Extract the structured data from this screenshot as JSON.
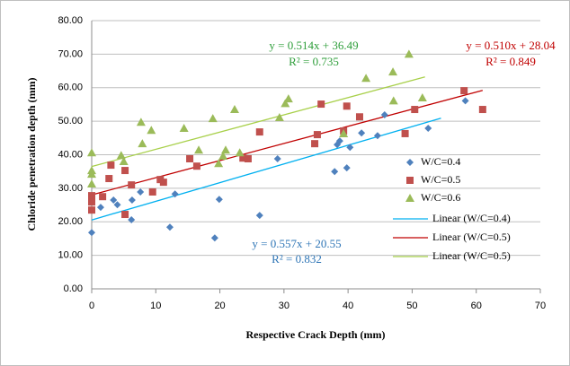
{
  "chart_data": {
    "type": "scatter",
    "xlabel": "Respective Crack  Depth (mm)",
    "ylabel": "Chloride penetration depth (mm)",
    "xlim": [
      0,
      70
    ],
    "xticks": [
      0,
      10,
      20,
      30,
      40,
      50,
      60,
      70
    ],
    "ylim": [
      0,
      80
    ],
    "yticks": [
      {
        "value": 0,
        "label": "0.00"
      },
      {
        "value": 10,
        "label": "10.00"
      },
      {
        "value": 20,
        "label": "20.00"
      },
      {
        "value": 30,
        "label": "30.00"
      },
      {
        "value": 40,
        "label": "40.00"
      },
      {
        "value": 50,
        "label": "50.00"
      },
      {
        "value": 60,
        "label": "60.00"
      },
      {
        "value": 70,
        "label": "70.00"
      },
      {
        "value": 80,
        "label": "80.00"
      }
    ],
    "grid": true,
    "legend": "right",
    "series": [
      {
        "name": "W/C=0.4",
        "kind": "scatter",
        "marker": "diamond",
        "color": "#4f81bd",
        "x": [
          0,
          1.4,
          3.4,
          4,
          6.2,
          6.3,
          7.6,
          12.2,
          13,
          19.2,
          19.9,
          26.2,
          29,
          37.9,
          38.3,
          38.7,
          39.8,
          40.3,
          42.1,
          44.6,
          45.7,
          52.5,
          58.3
        ],
        "values": [
          16.8,
          24.3,
          26.5,
          25.1,
          20.6,
          26.5,
          28.9,
          18.4,
          28.3,
          15.2,
          26.7,
          21.9,
          38.8,
          35,
          43,
          44.1,
          36.1,
          42.2,
          46.5,
          45.7,
          51.9,
          47.9,
          56.1
        ]
      },
      {
        "name": "W/C=0.5",
        "kind": "scatter",
        "marker": "square",
        "color": "#c0504d",
        "x": [
          0,
          0,
          0,
          1.7,
          2.7,
          3,
          5.2,
          5.2,
          6.2,
          9.5,
          10.7,
          11.2,
          15.3,
          16.4,
          23.6,
          24.4,
          26.2,
          34.8,
          35.2,
          35.8,
          39.3,
          39.8,
          41.8,
          48.9,
          50.4,
          58.1,
          61
        ],
        "values": [
          27.8,
          25.9,
          23.5,
          27.5,
          32.9,
          36.9,
          35.3,
          22.2,
          31,
          28.9,
          32.6,
          31.8,
          38.8,
          36.6,
          39,
          38.8,
          46.8,
          43.3,
          46,
          55.1,
          47.1,
          54.5,
          51.3,
          46.3,
          53.5,
          59.1,
          53.5
        ]
      },
      {
        "name": "W/C=0.6",
        "kind": "scatter",
        "marker": "triangle",
        "color": "#9bbb59",
        "x": [
          0,
          0,
          0,
          0,
          4.6,
          5,
          7.7,
          7.9,
          9.3,
          14.4,
          16.7,
          18.9,
          19.8,
          20.5,
          20.9,
          22.3,
          23.1,
          29.3,
          30.2,
          30.7,
          39.3,
          42.8,
          47.1,
          47,
          49.5,
          51.6
        ],
        "values": [
          40.6,
          35.3,
          34.2,
          31.3,
          39.8,
          38,
          49.7,
          43.3,
          47.3,
          47.9,
          41.4,
          50.8,
          37.4,
          39.6,
          41.4,
          53.5,
          40.6,
          51.1,
          55.3,
          56.7,
          46.3,
          62.8,
          56.1,
          64.7,
          70,
          57
        ]
      },
      {
        "name": "Linear (W/C=0.4)",
        "kind": "line",
        "color": "#00b0f0",
        "x": [
          0,
          54.5
        ],
        "values": [
          20.55,
          50.9
        ]
      },
      {
        "name": "Linear (W/C=0.5)",
        "kind": "line",
        "color": "#c00000",
        "x": [
          0,
          61
        ],
        "values": [
          28.04,
          59.2
        ]
      },
      {
        "name": "Linear (W/C=0.5)",
        "kind": "line",
        "color": "#a8d04a",
        "x": [
          0,
          52
        ],
        "values": [
          36.49,
          63.2
        ]
      }
    ],
    "annotations": [
      {
        "text": "y = 0.514x + 36.49",
        "color": "#2e9e3a"
      },
      {
        "text": "R² = 0.735",
        "color": "#2e9e3a"
      },
      {
        "text": "y = 0.510x + 28.04",
        "color": "#c00000"
      },
      {
        "text": "R² = 0.849",
        "color": "#c00000"
      },
      {
        "text": "y = 0.557x + 20.55",
        "color": "#2e75b6"
      },
      {
        "text": "R² = 0.832",
        "color": "#2e75b6"
      }
    ]
  }
}
